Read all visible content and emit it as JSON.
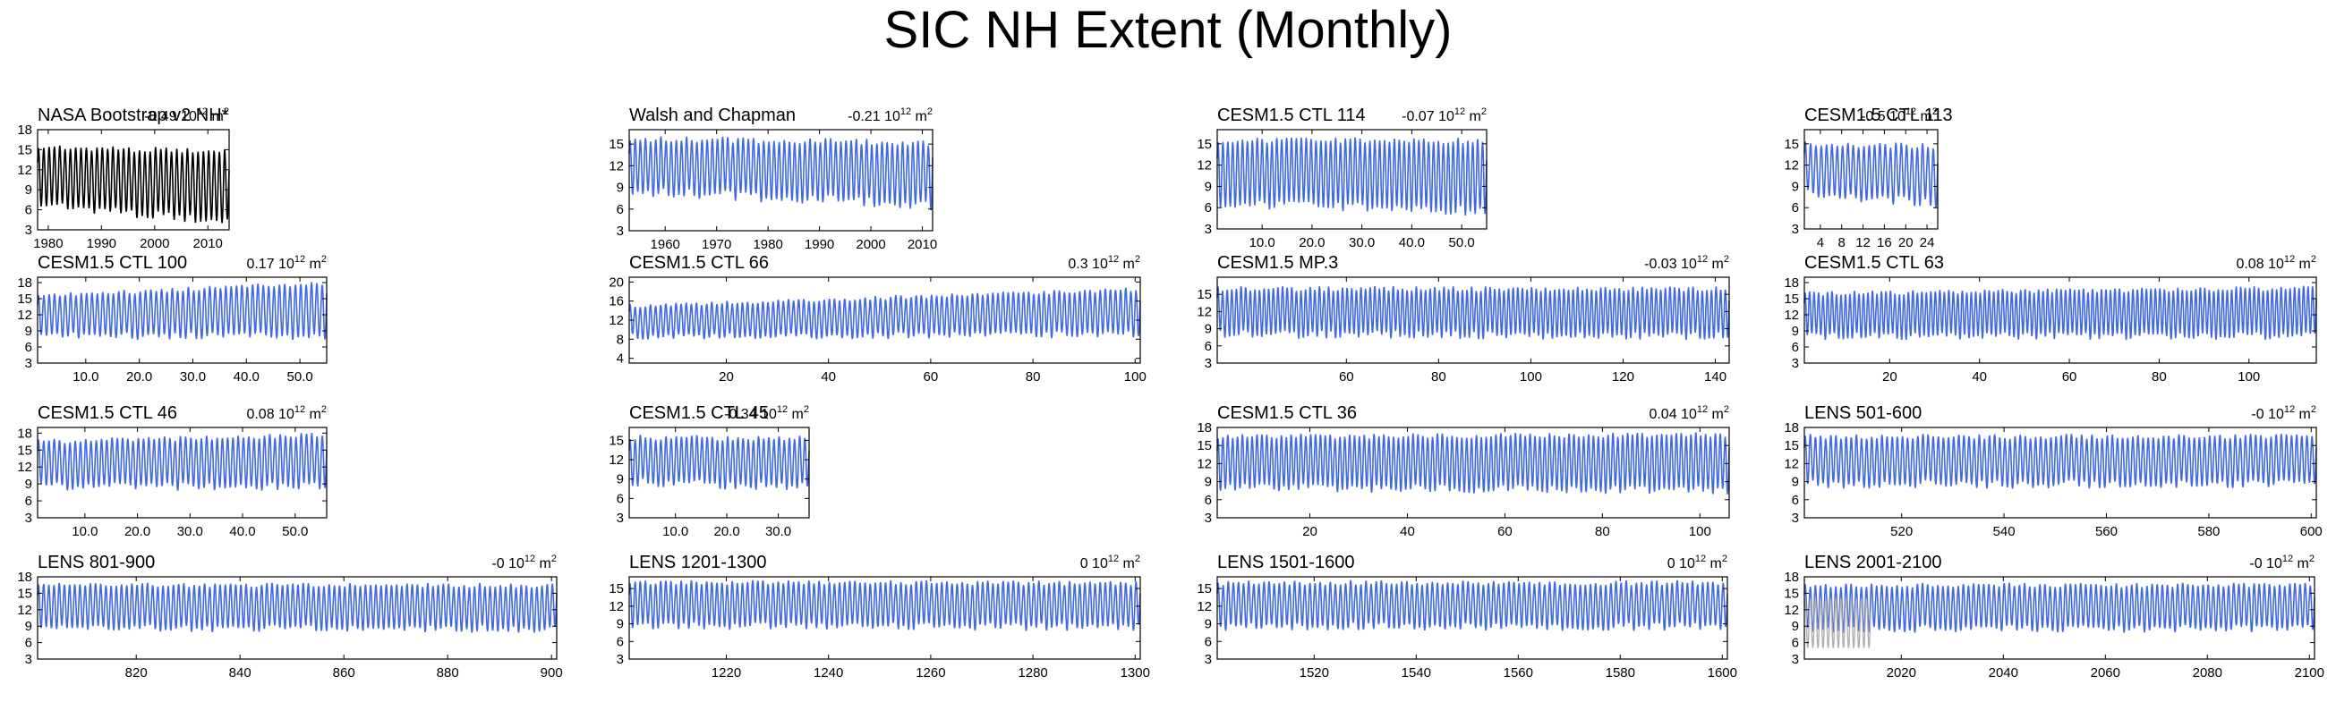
{
  "title": "SIC NH Extent (Monthly)",
  "colors": {
    "series": "#4169e1",
    "obs": "#000000",
    "overlay": "#b0b0b0",
    "axis": "#000000",
    "text": "#000000"
  },
  "chart_data": [
    {
      "title": "NASA Bootstrap v2 NH*",
      "trend": "-0.49",
      "trend_unit": "10",
      "trend_exp": "12",
      "trend_suffix": " m",
      "trend_sup2": "2",
      "type": "line",
      "x_range": [
        1978,
        2014
      ],
      "ylim": [
        3,
        18
      ],
      "yticks": [
        3,
        6,
        9,
        12,
        15,
        18
      ],
      "xticks": [
        {
          "v": 1980,
          "label": "1980"
        },
        {
          "v": 1990,
          "label": "1990"
        },
        {
          "v": 2000,
          "label": "2000"
        },
        {
          "v": 2010,
          "label": "2010"
        }
      ],
      "series_color": "obs",
      "cycles": 36,
      "seasonal_min": 7.0,
      "seasonal_max": 15.5,
      "min_trend": -3.0,
      "max_trend": -0.8
    },
    {
      "title": "Walsh and Chapman",
      "trend": "-0.21",
      "trend_unit": "10",
      "trend_exp": "12",
      "trend_suffix": " m",
      "trend_sup2": "2",
      "type": "line",
      "x_range": [
        1953,
        2012
      ],
      "ylim": [
        3,
        17
      ],
      "yticks": [
        3,
        6,
        9,
        12,
        15
      ],
      "xticks": [
        {
          "v": 1960,
          "label": "1960"
        },
        {
          "v": 1970,
          "label": "1970"
        },
        {
          "v": 1980,
          "label": "1980"
        },
        {
          "v": 1990,
          "label": "1990"
        },
        {
          "v": 2000,
          "label": "2000"
        },
        {
          "v": 2010,
          "label": "2010"
        }
      ],
      "series_color": "series",
      "cycles": 59,
      "seasonal_min": 8.5,
      "seasonal_max": 15.8,
      "min_trend": -2.0,
      "max_trend": -0.6
    },
    {
      "title": "CESM1.5 CTL 114",
      "trend": "-0.07",
      "trend_unit": "10",
      "trend_exp": "12",
      "trend_suffix": " m",
      "trend_sup2": "2",
      "type": "line",
      "x_range": [
        1,
        55
      ],
      "ylim": [
        3,
        17
      ],
      "yticks": [
        3,
        6,
        9,
        12,
        15
      ],
      "xticks": [
        {
          "v": 10,
          "label": "10.0"
        },
        {
          "v": 20,
          "label": "20.0"
        },
        {
          "v": 30,
          "label": "30.0"
        },
        {
          "v": 40,
          "label": "40.0"
        },
        {
          "v": 50,
          "label": "50.0"
        }
      ],
      "series_color": "series",
      "cycles": 55,
      "seasonal_min": 6.5,
      "seasonal_max": 15.5,
      "min_trend": -1.0,
      "max_trend": 0.0
    },
    {
      "title": "CESM1.5 CTL 113",
      "trend": "-0.5",
      "trend_unit": "10",
      "trend_exp": "12",
      "trend_suffix": " m",
      "trend_sup2": "2",
      "type": "line",
      "x_range": [
        1,
        26
      ],
      "ylim": [
        3,
        17
      ],
      "yticks": [
        3,
        6,
        9,
        12,
        15
      ],
      "xticks": [
        {
          "v": 4,
          "label": "4"
        },
        {
          "v": 8,
          "label": "8"
        },
        {
          "v": 12,
          "label": "12"
        },
        {
          "v": 16,
          "label": "16"
        },
        {
          "v": 20,
          "label": "20"
        },
        {
          "v": 24,
          "label": "24"
        }
      ],
      "series_color": "series",
      "cycles": 25,
      "seasonal_min": 8.0,
      "seasonal_max": 15.0,
      "min_trend": -1.5,
      "max_trend": -0.3
    },
    {
      "title": "CESM1.5 CTL 100",
      "trend": "0.17",
      "trend_unit": "10",
      "trend_exp": "12",
      "trend_suffix": " m",
      "trend_sup2": "2",
      "type": "line",
      "x_range": [
        1,
        55
      ],
      "ylim": [
        3,
        19
      ],
      "yticks": [
        3,
        6,
        9,
        12,
        15,
        18
      ],
      "xticks": [
        {
          "v": 10,
          "label": "10.0"
        },
        {
          "v": 20,
          "label": "20.0"
        },
        {
          "v": 30,
          "label": "30.0"
        },
        {
          "v": 40,
          "label": "40.0"
        },
        {
          "v": 50,
          "label": "50.0"
        }
      ],
      "series_color": "series",
      "cycles": 54,
      "seasonal_min": 8.0,
      "seasonal_max": 15.5,
      "min_trend": 0.0,
      "max_trend": 2.5
    },
    {
      "title": "CESM1.5 CTL 66",
      "trend": "0.3",
      "trend_unit": "10",
      "trend_exp": "12",
      "trend_suffix": " m",
      "trend_sup2": "2",
      "type": "line",
      "x_range": [
        1,
        101
      ],
      "ylim": [
        3,
        21
      ],
      "yticks": [
        4,
        8,
        12,
        16,
        20
      ],
      "xticks": [
        {
          "v": 20,
          "label": "20"
        },
        {
          "v": 40,
          "label": "40"
        },
        {
          "v": 60,
          "label": "60"
        },
        {
          "v": 80,
          "label": "80"
        },
        {
          "v": 100,
          "label": "100"
        }
      ],
      "series_color": "series",
      "cycles": 100,
      "seasonal_min": 8.5,
      "seasonal_max": 15.0,
      "min_trend": 0.5,
      "max_trend": 3.5
    },
    {
      "title": "CESM1.5 MP.3",
      "trend": "-0.03",
      "trend_unit": "10",
      "trend_exp": "12",
      "trend_suffix": " m",
      "trend_sup2": "2",
      "type": "line",
      "x_range": [
        32,
        143
      ],
      "ylim": [
        3,
        18
      ],
      "yticks": [
        3,
        6,
        9,
        12,
        15
      ],
      "xticks": [
        {
          "v": 60,
          "label": "60"
        },
        {
          "v": 80,
          "label": "80"
        },
        {
          "v": 100,
          "label": "100"
        },
        {
          "v": 120,
          "label": "120"
        },
        {
          "v": 140,
          "label": "140"
        }
      ],
      "series_color": "series",
      "cycles": 111,
      "seasonal_min": 8.0,
      "seasonal_max": 16.0,
      "min_trend": -0.3,
      "max_trend": 0.0
    },
    {
      "title": "CESM1.5 CTL 63",
      "trend": "0.08",
      "trend_unit": "10",
      "trend_exp": "12",
      "trend_suffix": " m",
      "trend_sup2": "2",
      "type": "line",
      "x_range": [
        1,
        115
      ],
      "ylim": [
        3,
        19
      ],
      "yticks": [
        3,
        6,
        9,
        12,
        15,
        18
      ],
      "xticks": [
        {
          "v": 20,
          "label": "20"
        },
        {
          "v": 40,
          "label": "40"
        },
        {
          "v": 60,
          "label": "60"
        },
        {
          "v": 80,
          "label": "80"
        },
        {
          "v": 100,
          "label": "100"
        }
      ],
      "series_color": "series",
      "cycles": 114,
      "seasonal_min": 8.0,
      "seasonal_max": 16.0,
      "min_trend": 0.0,
      "max_trend": 1.0
    },
    {
      "title": "CESM1.5 CTL 46",
      "trend": "0.08",
      "trend_unit": "10",
      "trend_exp": "12",
      "trend_suffix": " m",
      "trend_sup2": "2",
      "type": "line",
      "x_range": [
        1,
        56
      ],
      "ylim": [
        3,
        19
      ],
      "yticks": [
        3,
        6,
        9,
        12,
        15,
        18
      ],
      "xticks": [
        {
          "v": 10,
          "label": "10.0"
        },
        {
          "v": 20,
          "label": "20.0"
        },
        {
          "v": 30,
          "label": "30.0"
        },
        {
          "v": 40,
          "label": "40.0"
        },
        {
          "v": 50,
          "label": "50.0"
        }
      ],
      "series_color": "series",
      "cycles": 55,
      "seasonal_min": 8.5,
      "seasonal_max": 16.5,
      "min_trend": 0.0,
      "max_trend": 1.2
    },
    {
      "title": "CESM1.5 CTL 45",
      "trend": "-0.34",
      "trend_unit": "10",
      "trend_exp": "12",
      "trend_suffix": " m",
      "trend_sup2": "2",
      "type": "line",
      "x_range": [
        1,
        36
      ],
      "ylim": [
        3,
        17
      ],
      "yticks": [
        3,
        6,
        9,
        12,
        15
      ],
      "xticks": [
        {
          "v": 10,
          "label": "10.0"
        },
        {
          "v": 20,
          "label": "20.0"
        },
        {
          "v": 30,
          "label": "30.0"
        }
      ],
      "series_color": "series",
      "cycles": 35,
      "seasonal_min": 8.5,
      "seasonal_max": 15.5,
      "min_trend": -0.8,
      "max_trend": -0.2
    },
    {
      "title": "CESM1.5 CTL 36",
      "trend": "0.04",
      "trend_unit": "10",
      "trend_exp": "12",
      "trend_suffix": " m",
      "trend_sup2": "2",
      "type": "line",
      "x_range": [
        1,
        106
      ],
      "ylim": [
        3,
        18
      ],
      "yticks": [
        3,
        6,
        9,
        12,
        15,
        18
      ],
      "xticks": [
        {
          "v": 20,
          "label": "20"
        },
        {
          "v": 40,
          "label": "40"
        },
        {
          "v": 60,
          "label": "60"
        },
        {
          "v": 80,
          "label": "80"
        },
        {
          "v": 100,
          "label": "100"
        }
      ],
      "series_color": "series",
      "cycles": 105,
      "seasonal_min": 8.0,
      "seasonal_max": 16.5,
      "min_trend": -0.5,
      "max_trend": 0.3
    },
    {
      "title": "LENS 501-600",
      "trend": "-0",
      "trend_unit": "10",
      "trend_exp": "12",
      "trend_suffix": " m",
      "trend_sup2": "2",
      "type": "line",
      "x_range": [
        501,
        601
      ],
      "ylim": [
        3,
        18
      ],
      "yticks": [
        3,
        6,
        9,
        12,
        15,
        18
      ],
      "xticks": [
        {
          "v": 520,
          "label": "520"
        },
        {
          "v": 540,
          "label": "540"
        },
        {
          "v": 560,
          "label": "560"
        },
        {
          "v": 580,
          "label": "580"
        },
        {
          "v": 600,
          "label": "600"
        }
      ],
      "series_color": "series",
      "cycles": 100,
      "seasonal_min": 8.5,
      "seasonal_max": 16.5,
      "min_trend": 0.0,
      "max_trend": 0.0
    },
    {
      "title": "LENS 801-900",
      "trend": "-0",
      "trend_unit": "10",
      "trend_exp": "12",
      "trend_suffix": " m",
      "trend_sup2": "2",
      "type": "line",
      "x_range": [
        801,
        901
      ],
      "ylim": [
        3,
        18
      ],
      "yticks": [
        3,
        6,
        9,
        12,
        15,
        18
      ],
      "xticks": [
        {
          "v": 820,
          "label": "820"
        },
        {
          "v": 840,
          "label": "840"
        },
        {
          "v": 860,
          "label": "860"
        },
        {
          "v": 880,
          "label": "880"
        },
        {
          "v": 900,
          "label": "900"
        }
      ],
      "series_color": "series",
      "cycles": 100,
      "seasonal_min": 8.5,
      "seasonal_max": 16.5,
      "min_trend": 0.0,
      "max_trend": 0.0
    },
    {
      "title": "LENS 1201-1300",
      "trend": "0",
      "trend_unit": "10",
      "trend_exp": "12",
      "trend_suffix": " m",
      "trend_sup2": "2",
      "type": "line",
      "x_range": [
        1201,
        1301
      ],
      "ylim": [
        3,
        17
      ],
      "yticks": [
        3,
        6,
        9,
        12,
        15
      ],
      "xticks": [
        {
          "v": 1220,
          "label": "1220"
        },
        {
          "v": 1240,
          "label": "1240"
        },
        {
          "v": 1260,
          "label": "1260"
        },
        {
          "v": 1280,
          "label": "1280"
        },
        {
          "v": 1300,
          "label": "1300"
        }
      ],
      "series_color": "series",
      "cycles": 100,
      "seasonal_min": 8.5,
      "seasonal_max": 16.0,
      "min_trend": 0.0,
      "max_trend": 0.0
    },
    {
      "title": "LENS 1501-1600",
      "trend": "0",
      "trend_unit": "10",
      "trend_exp": "12",
      "trend_suffix": " m",
      "trend_sup2": "2",
      "type": "line",
      "x_range": [
        1501,
        1601
      ],
      "ylim": [
        3,
        17
      ],
      "yticks": [
        3,
        6,
        9,
        12,
        15
      ],
      "xticks": [
        {
          "v": 1520,
          "label": "1520"
        },
        {
          "v": 1540,
          "label": "1540"
        },
        {
          "v": 1560,
          "label": "1560"
        },
        {
          "v": 1580,
          "label": "1580"
        },
        {
          "v": 1600,
          "label": "1600"
        }
      ],
      "series_color": "series",
      "cycles": 100,
      "seasonal_min": 8.5,
      "seasonal_max": 16.0,
      "min_trend": 0.0,
      "max_trend": 0.0
    },
    {
      "title": "LENS 2001-2100",
      "trend": "-0",
      "trend_unit": "10",
      "trend_exp": "12",
      "trend_suffix": " m",
      "trend_sup2": "2",
      "type": "line",
      "x_range": [
        2001,
        2101
      ],
      "ylim": [
        3,
        18
      ],
      "yticks": [
        3,
        6,
        9,
        12,
        15,
        18
      ],
      "xticks": [
        {
          "v": 2020,
          "label": "2020"
        },
        {
          "v": 2040,
          "label": "2040"
        },
        {
          "v": 2060,
          "label": "2060"
        },
        {
          "v": 2080,
          "label": "2080"
        },
        {
          "v": 2100,
          "label": "2100"
        }
      ],
      "series_color": "series",
      "cycles": 100,
      "seasonal_min": 8.5,
      "seasonal_max": 16.5,
      "min_trend": 0.0,
      "max_trend": 0.0,
      "overlay": {
        "x_range": [
          2001,
          2014
        ],
        "seasonal_min": 5.0,
        "seasonal_max": 14.0
      }
    }
  ]
}
